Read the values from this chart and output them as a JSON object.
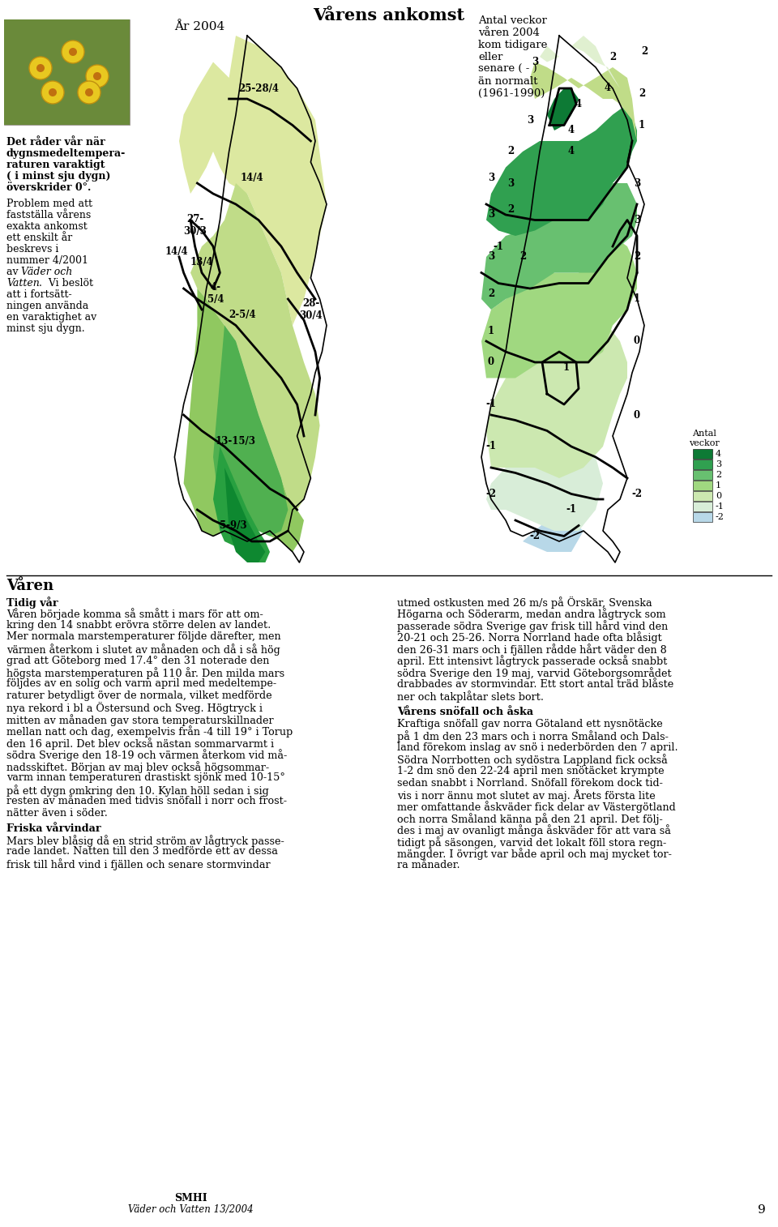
{
  "title": "Vårens ankomst",
  "subtitle_left": "År 2004",
  "subtitle_right": "Antal veckor\nvåren 2004\nkom tidigare\neller\nsenare ( - )\nän normalt\n(1961-1990)",
  "bold_text_line1": "Det råder vår när",
  "bold_text_line2": "dygnsmedeltempera-",
  "bold_text_line3": "raturen varaktigt",
  "bold_text_line4": "( i minst sju dygn)",
  "bold_text_line5": "överskrider 0°.",
  "normal_text": "Problem med att\nfastställa vårens\nexakta ankomst\nett enskilt år\nbeskrevs i\nnummer 4/2001\nav ",
  "italic_text": "Väder och\nVatten",
  "normal_text2": ".  Vi beslöt\natt i fortsätt-\nningen använda\nen varaktighet av\nminst sju dygn.",
  "section_title": "Våren",
  "sub1_title": "Tidig vår",
  "col1_body": "Våren började komma så smått i mars för att om-\nkring den 14 snabbt erövra större delen av landet.\nMer normala marstemperaturer följde därefter, men\nvärmen återkom i slutet av månaden och då i så hög\ngrad att Göteborg med 17.4° den 31 noterade den\nhögsta marstemperaturen på 110 år. Den milda mars\nföljdes av en solig och varm april med medeltempe-\nraturer betydligt över de normala, vilket medförde\nnya rekord i bl a Östersund och Sveg. Högtryck i\nmitten av månaden gav stora temperaturskillnader\nmellan natt och dag, exempelvis från -4 till 19° i Torup\nden 16 april. Det blev också nästan sommarvarmt i\nsödra Sverige den 18-19 och värmen återkom vid må-\nnadsskiftet. Början av maj blev också högsommar-\nvarm innan temperaturen drastiskt sjönk med 10-15°\npå ett dygn omkring den 10. Kylan höll sedan i sig\nresten av månaden med tidvis snöfall i norr och frost-\nnätter även i söder.",
  "sub2_title": "Friska vårvindar",
  "col1_body2": "Mars blev blåsig då en strid ström av lågtryck passe-\nrade landet. Natten till den 3 medförde ett av dessa\nfrisk till hård vind i fjällen och senare stormvindar",
  "col2_body1": "utmed ostkusten med 26 m/s på Örskär, Svenska\nHögarna och Söderarm, medan andra lågtryck som\npasserade södra Sverige gav frisk till hård vind den\n20-21 och 25-26. Norra Norrland hade ofta blåsigt\nden 26-31 mars och i fjällen rådde hårt väder den 8\napril. Ett intensivt lågtryck passerade också snabbt\nsödra Sverige den 19 maj, varvid Göteborgsområdet\ndrabbades av stormvindar. Ett stort antal träd blåste\nner och takplåtar slets bort.",
  "sub3_title": "Vårens snöfall och åska",
  "col2_body2": "Kraftiga snöfall gav norra Götaland ett nysnötäcke\npå 1 dm den 23 mars och i norra Småland och Dals-\nland förekom inslag av snö i nederbörden den 7 april.\nSödra Norrbotten och sydöstra Lappland fick också\n1-2 dm snö den 22-24 april men snötäcket krympte\nsedan snabbt i Norrland. Snöfall förekom dock tid-\nvis i norr ännu mot slutet av maj. Årets första lite\nmer omfattande åskväder fick delar av Västergötland\noch norra Småland känna på den 21 april. Det följ-\ndes i maj av ovanligt många åskväder för att vara så\ntidigt på säsongen, varvid det lokalt föll stora regn-\nmängder. I övrigt var både april och maj mycket tor-\nra månader.",
  "footer1": "SMHI",
  "footer2": "Väder och Vatten 13/2004",
  "page_num": "9",
  "legend_title": "Antal\nveckor",
  "legend_values": [
    "4",
    "3",
    "2",
    "1",
    "0",
    "-1",
    "-2"
  ],
  "legend_colors": [
    "#0d7a35",
    "#2da04e",
    "#6abf72",
    "#9ed494",
    "#c8e8a8",
    "#dff0d0",
    "#b8d8e8"
  ],
  "bg_color": "#ffffff"
}
